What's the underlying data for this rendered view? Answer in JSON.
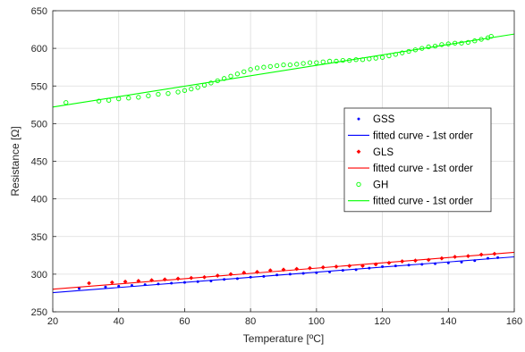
{
  "chart_data": {
    "type": "scatter",
    "title": "",
    "xlabel": "Temperature [ºC]",
    "ylabel": "Resistance [Ω]",
    "xlim": [
      20,
      160
    ],
    "ylim": [
      250,
      650
    ],
    "xticks": [
      20,
      40,
      60,
      80,
      100,
      120,
      140,
      160
    ],
    "yticks": [
      250,
      300,
      350,
      400,
      450,
      500,
      550,
      600,
      650
    ],
    "grid": true,
    "legend_position": "right-middle",
    "series": [
      {
        "name": "GSS",
        "kind": "markers",
        "marker": "dot",
        "color": "#0000ff",
        "x": [
          28,
          36,
          40,
          44,
          48,
          52,
          56,
          60,
          64,
          68,
          72,
          76,
          80,
          84,
          88,
          92,
          96,
          100,
          104,
          108,
          112,
          116,
          120,
          124,
          128,
          132,
          136,
          140,
          144,
          148,
          152,
          155
        ],
        "y": [
          281,
          283,
          284,
          285,
          286,
          287,
          288,
          289,
          290,
          291,
          293,
          294,
          296,
          297,
          299,
          300,
          301,
          302,
          303,
          305,
          306,
          308,
          310,
          311,
          312,
          313,
          314,
          315,
          316,
          318,
          321,
          322
        ]
      },
      {
        "name": "fitted curve - 1st order",
        "kind": "line",
        "color": "#0000ff",
        "x": [
          20,
          160
        ],
        "y": [
          275.5,
          323
        ]
      },
      {
        "name": "GLS",
        "kind": "markers",
        "marker": "diamond",
        "color": "#ff0000",
        "x": [
          31,
          38,
          42,
          46,
          50,
          54,
          58,
          62,
          66,
          70,
          74,
          78,
          82,
          86,
          90,
          94,
          98,
          102,
          106,
          110,
          114,
          118,
          122,
          126,
          130,
          134,
          138,
          142,
          146,
          150,
          154
        ],
        "y": [
          288,
          289,
          290,
          291,
          292,
          293,
          294,
          295,
          296,
          298,
          300,
          302,
          303,
          305,
          306,
          307,
          308,
          309,
          310,
          311,
          311,
          313,
          315,
          317,
          318,
          319,
          321,
          323,
          324,
          326,
          327
        ]
      },
      {
        "name": "fitted curve - 1st order",
        "kind": "line",
        "color": "#ff0000",
        "x": [
          20,
          160
        ],
        "y": [
          280,
          329
        ]
      },
      {
        "name": "GH",
        "kind": "markers",
        "marker": "circle",
        "color": "#00ff00",
        "x": [
          24,
          34,
          37,
          40,
          43,
          46,
          49,
          52,
          55,
          58,
          60,
          62,
          64,
          66,
          68,
          70,
          72,
          74,
          76,
          78,
          80,
          82,
          84,
          86,
          88,
          90,
          92,
          94,
          96,
          98,
          100,
          102,
          104,
          106,
          108,
          110,
          112,
          114,
          116,
          118,
          120,
          122,
          124,
          126,
          128,
          130,
          132,
          134,
          136,
          138,
          140,
          142,
          144,
          146,
          148,
          150,
          152,
          153
        ],
        "y": [
          528,
          530,
          531,
          533,
          534,
          535,
          537,
          539,
          540,
          542,
          544,
          546,
          548,
          551,
          554,
          557,
          560,
          563,
          566,
          569,
          572,
          574,
          575,
          576,
          577,
          578,
          578,
          579,
          580,
          581,
          581,
          582,
          583,
          583,
          584,
          584,
          585,
          585,
          586,
          587,
          588,
          590,
          592,
          594,
          596,
          598,
          600,
          602,
          603,
          605,
          606,
          607,
          607,
          608,
          610,
          612,
          614,
          616
        ]
      },
      {
        "name": "fitted curve - 1st order",
        "kind": "line",
        "color": "#00ff00",
        "x": [
          20,
          160
        ],
        "y": [
          522,
          619
        ]
      }
    ]
  }
}
